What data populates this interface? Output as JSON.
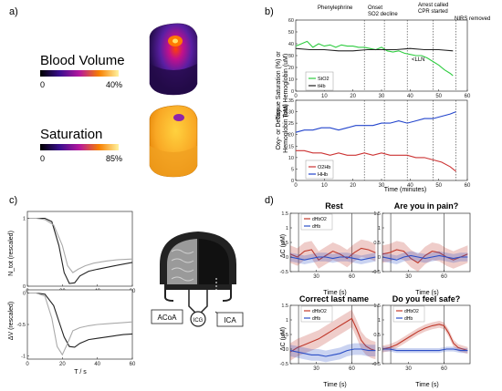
{
  "panels": {
    "a": {
      "label": "a)",
      "blood_volume": {
        "title": "Blood Volume",
        "min": "0",
        "max": "40%"
      },
      "saturation": {
        "title": "Saturation",
        "min": "0",
        "max": "85%"
      }
    },
    "b": {
      "label": "b)",
      "events": [
        "Phenylephrine",
        "Onset",
        "SO2 decline",
        "Arrest called",
        "CPR started",
        "NIRS removed"
      ],
      "annotation": "<LLN",
      "top_ylabel_1": "Tissue Saturation (%) or",
      "top_ylabel_2": "Total Hemoglobin (uM)",
      "bottom_ylabel_1": "Oxy- or Deoxy-",
      "bottom_ylabel_2": "Hemoglobin (uM)",
      "xlabel": "Time (minutes)",
      "top_legend": [
        "StO2",
        "tHb"
      ],
      "bottom_legend": [
        "O2Hb",
        "HHb"
      ]
    },
    "c": {
      "label": "c)",
      "top_ylabel": "N_tot (rescaled)",
      "bottom_ylabel": "ΔV (rescaled)",
      "xlabel": "T / s",
      "diagram_labels": {
        "left": "ACoA",
        "center": "ICG",
        "right": "ICA"
      }
    },
    "d": {
      "label": "d)",
      "titles": [
        "Rest",
        "Are you in pain?",
        "Correct last name",
        "Do you feel safe?"
      ],
      "ylabel": "ΔC (μM)",
      "xlabel": "Time (s)",
      "legend": [
        "dHbO2",
        "dHb"
      ]
    }
  },
  "chart_data": [
    {
      "type": "line",
      "id": "b-top",
      "xlim": [
        0,
        60
      ],
      "ylim": [
        0,
        60
      ],
      "xticks": [
        0,
        10,
        20,
        30,
        40,
        50,
        60
      ],
      "yticks": [
        0,
        10,
        20,
        30,
        40,
        50,
        60
      ],
      "event_lines_x": [
        24,
        31,
        39,
        48,
        56
      ],
      "series": [
        {
          "name": "StO2",
          "color": "#2ecc40",
          "x": [
            0,
            2,
            4,
            6,
            8,
            10,
            12,
            14,
            16,
            18,
            20,
            22,
            24,
            26,
            28,
            30,
            32,
            34,
            36,
            38,
            40,
            42,
            44,
            46,
            48,
            50,
            52,
            54,
            55
          ],
          "y": [
            38,
            40,
            42,
            37,
            40,
            38,
            39,
            37,
            39,
            38,
            38,
            37,
            37,
            36,
            35,
            37,
            34,
            33,
            34,
            32,
            31,
            30,
            30,
            28,
            25,
            22,
            18,
            15,
            13
          ]
        },
        {
          "name": "tHb",
          "color": "#222222",
          "x": [
            0,
            5,
            10,
            15,
            20,
            25,
            30,
            35,
            40,
            45,
            50,
            55
          ],
          "y": [
            36,
            35,
            35,
            34,
            34,
            35,
            35,
            35,
            36,
            35,
            35,
            34
          ]
        }
      ]
    },
    {
      "type": "line",
      "id": "b-bottom",
      "xlim": [
        0,
        60
      ],
      "ylim": [
        0,
        35
      ],
      "xticks": [
        0,
        10,
        20,
        30,
        40,
        50,
        60
      ],
      "yticks": [
        0,
        5,
        10,
        15,
        20,
        25,
        30,
        35
      ],
      "event_lines_x": [
        24,
        31,
        39,
        48,
        56
      ],
      "series": [
        {
          "name": "O2Hb",
          "color": "#cc3333",
          "x": [
            0,
            3,
            6,
            9,
            12,
            15,
            18,
            21,
            24,
            27,
            30,
            33,
            36,
            39,
            42,
            45,
            48,
            51,
            54,
            56
          ],
          "y": [
            13,
            13,
            12,
            12,
            11,
            12,
            11,
            11,
            12,
            11,
            12,
            11,
            11,
            11,
            10,
            10,
            9,
            8,
            6,
            4
          ]
        },
        {
          "name": "HHb",
          "color": "#2244cc",
          "x": [
            0,
            3,
            6,
            9,
            12,
            15,
            18,
            21,
            24,
            27,
            30,
            33,
            36,
            39,
            42,
            45,
            48,
            51,
            54,
            56
          ],
          "y": [
            21,
            22,
            22,
            23,
            23,
            22,
            23,
            24,
            24,
            24,
            25,
            25,
            26,
            25,
            26,
            27,
            27,
            28,
            29,
            30
          ]
        }
      ]
    },
    {
      "type": "line",
      "id": "c-top",
      "xlim": [
        0,
        60
      ],
      "ylim": [
        0,
        1.1
      ],
      "xticks": [
        0,
        20,
        40,
        60
      ],
      "yticks": [
        0,
        1
      ],
      "series": [
        {
          "name": "",
          "color": "#222222",
          "x": [
            0,
            5,
            10,
            14,
            18,
            21,
            24,
            27,
            30,
            35,
            40,
            50,
            60
          ],
          "y": [
            1,
            1,
            1,
            0.95,
            0.6,
            0.2,
            0.04,
            0.05,
            0.15,
            0.22,
            0.25,
            0.3,
            0.35
          ]
        },
        {
          "name": "",
          "color": "#aaaaaa",
          "x": [
            0,
            5,
            10,
            15,
            20,
            23,
            26,
            29,
            33,
            38,
            45,
            52,
            60
          ],
          "y": [
            1,
            1,
            0.98,
            0.9,
            0.6,
            0.3,
            0.2,
            0.25,
            0.3,
            0.34,
            0.37,
            0.39,
            0.4
          ]
        }
      ]
    },
    {
      "type": "line",
      "id": "c-bottom",
      "xlim": [
        0,
        60
      ],
      "ylim": [
        -1.05,
        0.05
      ],
      "xticks": [
        0,
        20,
        40,
        60
      ],
      "yticks": [
        -1,
        -0.5,
        0
      ],
      "series": [
        {
          "name": "",
          "color": "#222222",
          "x": [
            0,
            5,
            10,
            15,
            18,
            21,
            24,
            27,
            30,
            35,
            40,
            45,
            50,
            55,
            60
          ],
          "y": [
            0,
            0,
            -0.02,
            -0.2,
            -0.45,
            -0.7,
            -0.85,
            -0.86,
            -0.8,
            -0.74,
            -0.72,
            -0.7,
            -0.68,
            -0.66,
            -0.65
          ]
        },
        {
          "name": "",
          "color": "#aaaaaa",
          "x": [
            0,
            5,
            10,
            14,
            17,
            20,
            23,
            26,
            30,
            35,
            40,
            45,
            50,
            55,
            60
          ],
          "y": [
            0,
            0,
            -0.05,
            -0.4,
            -0.85,
            -0.98,
            -0.8,
            -0.6,
            -0.55,
            -0.52,
            -0.5,
            -0.49,
            -0.48,
            -0.47,
            -0.46
          ]
        }
      ]
    },
    {
      "type": "line",
      "id": "d-rest",
      "xlim": [
        8,
        82
      ],
      "ylim": [
        -0.5,
        1.5
      ],
      "xticks": [
        30,
        60
      ],
      "yticks": [
        -0.5,
        0,
        0.5,
        1,
        1.5
      ],
      "event_lines_x": [
        15,
        60
      ],
      "series": [
        {
          "name": "dHbO2",
          "color": "#c0392b",
          "band": 0.3,
          "x": [
            8,
            14,
            20,
            26,
            32,
            38,
            44,
            50,
            56,
            62,
            68,
            74,
            80
          ],
          "y": [
            0.1,
            0.0,
            0.2,
            0.25,
            -0.1,
            0.05,
            0.2,
            0.1,
            -0.05,
            0.15,
            0.3,
            0.25,
            0.15
          ]
        },
        {
          "name": "dHb",
          "color": "#2c4fc7",
          "band": 0.15,
          "x": [
            8,
            14,
            20,
            26,
            32,
            38,
            44,
            50,
            56,
            62,
            68,
            74,
            80
          ],
          "y": [
            0.0,
            -0.05,
            -0.1,
            -0.05,
            0.0,
            0.0,
            -0.05,
            0.0,
            0.0,
            -0.05,
            -0.1,
            -0.05,
            0.0
          ]
        }
      ]
    },
    {
      "type": "line",
      "id": "d-pain",
      "xlim": [
        8,
        82
      ],
      "ylim": [
        -0.5,
        1.5
      ],
      "xticks": [
        30,
        60
      ],
      "yticks": [
        -0.5,
        0,
        0.5,
        1,
        1.5
      ],
      "event_lines_x": [
        15,
        60
      ],
      "series": [
        {
          "name": "dHbO2",
          "color": "#c0392b",
          "band": 0.3,
          "x": [
            8,
            14,
            20,
            26,
            32,
            38,
            44,
            50,
            56,
            62,
            68,
            74,
            80
          ],
          "y": [
            0.1,
            0.15,
            0.25,
            0.2,
            -0.05,
            -0.2,
            0.05,
            0.2,
            0.15,
            0.0,
            -0.1,
            0.0,
            0.1
          ]
        },
        {
          "name": "dHb",
          "color": "#2c4fc7",
          "band": 0.15,
          "x": [
            8,
            14,
            20,
            26,
            32,
            38,
            44,
            50,
            56,
            62,
            68,
            74,
            80
          ],
          "y": [
            0.0,
            -0.05,
            -0.1,
            0.0,
            0.05,
            0.0,
            -0.05,
            0.0,
            0.05,
            0.0,
            -0.05,
            0.0,
            0.0
          ]
        }
      ]
    },
    {
      "type": "line",
      "id": "d-name",
      "xlim": [
        8,
        82
      ],
      "ylim": [
        -0.5,
        1.5
      ],
      "xticks": [
        30,
        60
      ],
      "yticks": [
        -0.5,
        0,
        0.5,
        1,
        1.5
      ],
      "event_lines_x": [
        15,
        60
      ],
      "series": [
        {
          "name": "dHbO2",
          "color": "#c0392b",
          "band": 0.3,
          "x": [
            8,
            14,
            20,
            26,
            32,
            38,
            44,
            50,
            56,
            60,
            64,
            68,
            72,
            76,
            80
          ],
          "y": [
            -0.1,
            0.05,
            0.15,
            0.25,
            0.35,
            0.5,
            0.65,
            0.8,
            0.95,
            1.05,
            0.7,
            0.3,
            0.1,
            0.0,
            -0.05
          ]
        },
        {
          "name": "dHb",
          "color": "#2c4fc7",
          "band": 0.2,
          "x": [
            8,
            14,
            20,
            26,
            32,
            38,
            44,
            50,
            56,
            62,
            68,
            74,
            80
          ],
          "y": [
            -0.05,
            -0.1,
            -0.15,
            -0.2,
            -0.2,
            -0.25,
            -0.2,
            -0.15,
            -0.05,
            0.0,
            0.0,
            -0.05,
            -0.05
          ]
        }
      ]
    },
    {
      "type": "line",
      "id": "d-safe",
      "xlim": [
        8,
        82
      ],
      "ylim": [
        -0.5,
        1.5
      ],
      "xticks": [
        30,
        60
      ],
      "yticks": [
        -0.5,
        0,
        0.5,
        1,
        1.5
      ],
      "event_lines_x": [
        15,
        60
      ],
      "series": [
        {
          "name": "dHbO2",
          "color": "#c0392b",
          "band": 0.12,
          "x": [
            8,
            14,
            20,
            26,
            32,
            38,
            44,
            50,
            56,
            60,
            64,
            68,
            72,
            76,
            80
          ],
          "y": [
            0.0,
            0.05,
            0.15,
            0.3,
            0.45,
            0.6,
            0.72,
            0.8,
            0.85,
            0.8,
            0.55,
            0.2,
            0.05,
            0.0,
            -0.05
          ]
        },
        {
          "name": "dHb",
          "color": "#2c4fc7",
          "band": 0.08,
          "x": [
            8,
            14,
            20,
            26,
            32,
            38,
            44,
            50,
            56,
            62,
            68,
            74,
            80
          ],
          "y": [
            0.0,
            0.0,
            -0.05,
            -0.05,
            -0.05,
            -0.05,
            -0.05,
            -0.05,
            -0.05,
            0.0,
            0.0,
            -0.05,
            -0.05
          ]
        }
      ]
    }
  ]
}
